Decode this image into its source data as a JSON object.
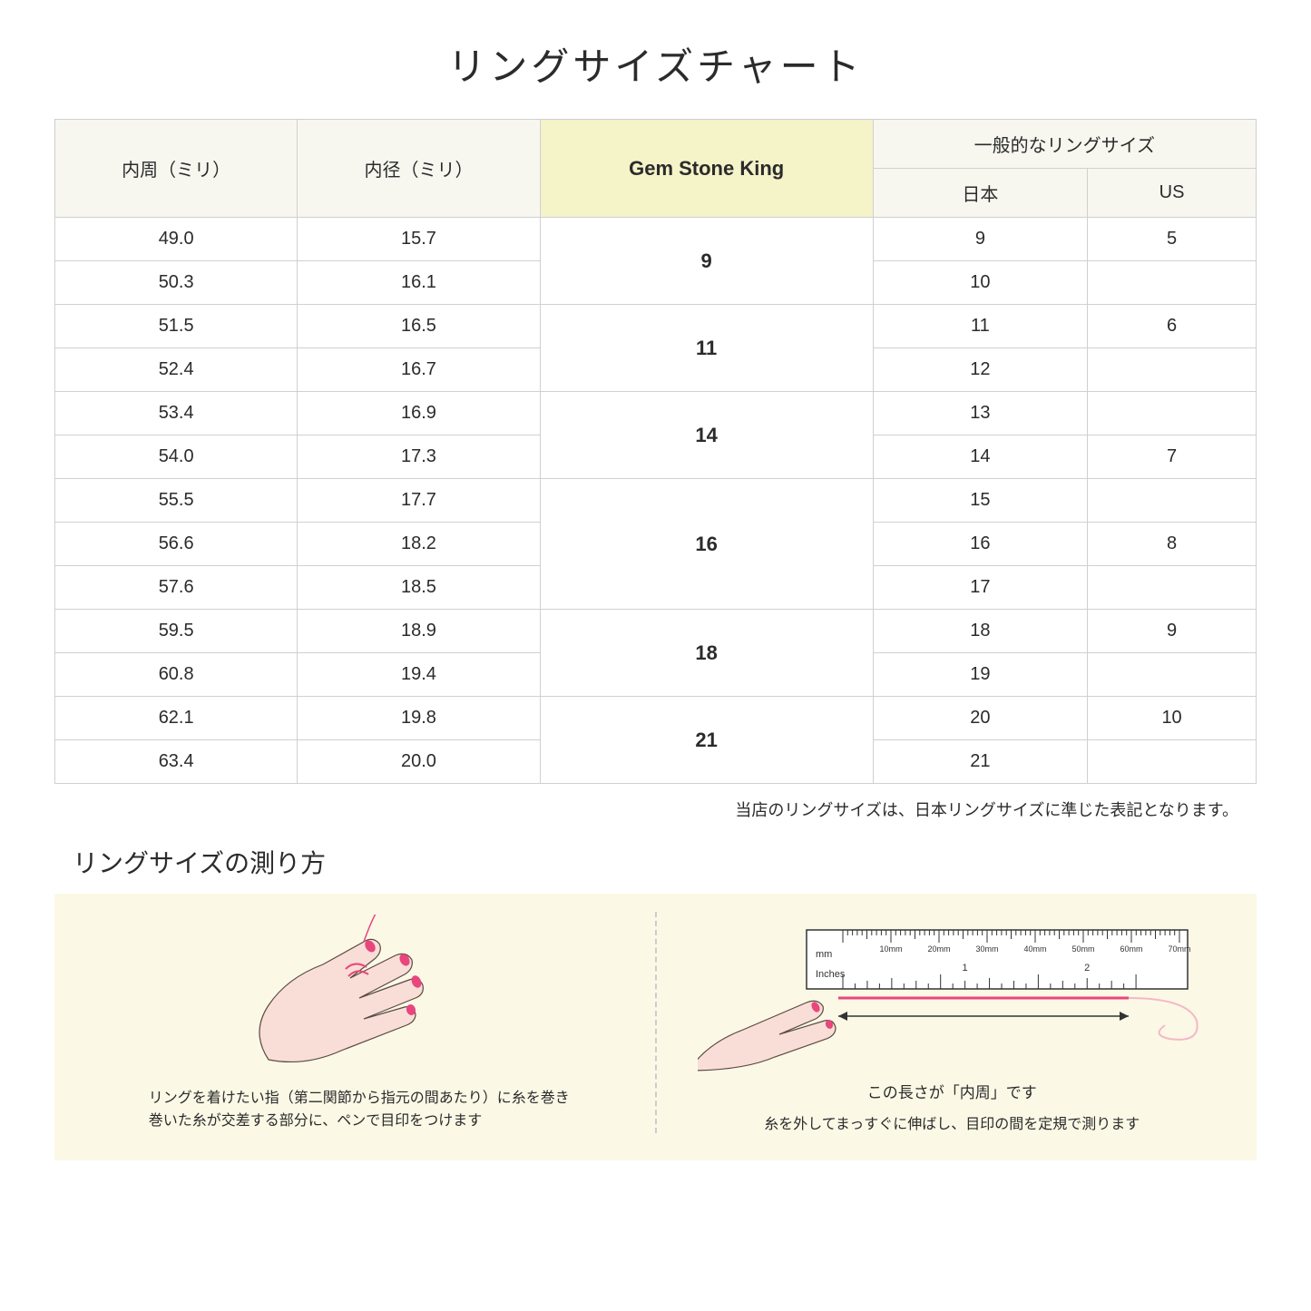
{
  "title": "リングサイズチャート",
  "table": {
    "headers": {
      "circumference": "内周（ミリ）",
      "diameter": "内径（ミリ）",
      "gsk": "Gem Stone King",
      "general": "一般的なリングサイズ",
      "japan": "日本",
      "us": "US"
    },
    "groups": [
      {
        "gsk": "9",
        "rows": [
          {
            "circ": "49.0",
            "diam": "15.7",
            "jp": "9",
            "us": "5"
          },
          {
            "circ": "50.3",
            "diam": "16.1",
            "jp": "10",
            "us": ""
          }
        ]
      },
      {
        "gsk": "11",
        "rows": [
          {
            "circ": "51.5",
            "diam": "16.5",
            "jp": "11",
            "us": "6"
          },
          {
            "circ": "52.4",
            "diam": "16.7",
            "jp": "12",
            "us": ""
          }
        ]
      },
      {
        "gsk": "14",
        "rows": [
          {
            "circ": "53.4",
            "diam": "16.9",
            "jp": "13",
            "us": ""
          },
          {
            "circ": "54.0",
            "diam": "17.3",
            "jp": "14",
            "us": "7"
          }
        ]
      },
      {
        "gsk": "16",
        "rows": [
          {
            "circ": "55.5",
            "diam": "17.7",
            "jp": "15",
            "us": ""
          },
          {
            "circ": "56.6",
            "diam": "18.2",
            "jp": "16",
            "us": "8"
          },
          {
            "circ": "57.6",
            "diam": "18.5",
            "jp": "17",
            "us": ""
          }
        ]
      },
      {
        "gsk": "18",
        "rows": [
          {
            "circ": "59.5",
            "diam": "18.9",
            "jp": "18",
            "us": "9"
          },
          {
            "circ": "60.8",
            "diam": "19.4",
            "jp": "19",
            "us": ""
          }
        ]
      },
      {
        "gsk": "21",
        "rows": [
          {
            "circ": "62.1",
            "diam": "19.8",
            "jp": "20",
            "us": "10"
          },
          {
            "circ": "63.4",
            "diam": "20.0",
            "jp": "21",
            "us": ""
          }
        ]
      }
    ]
  },
  "note": "当店のリングサイズは、日本リングサイズに準じた表記となります。",
  "subtitle": "リングサイズの測り方",
  "howto": {
    "left_caption": "リングを着けたい指（第二関節から指元の間あたり）に糸を巻き\n巻いた糸が交差する部分に、ペンで目印をつけます",
    "right_label": "この長さが「内周」です",
    "right_caption": "糸を外してまっすぐに伸ばし、目印の間を定規で測ります",
    "ruler": {
      "mm_label": "mm",
      "inches_label": "Inches",
      "mm_ticks": [
        "10mm",
        "20mm",
        "30mm",
        "40mm",
        "50mm",
        "60mm",
        "70mm"
      ],
      "inch_ticks": [
        "1",
        "2"
      ]
    }
  },
  "colors": {
    "header_bg": "#f7f7f0",
    "gsk_bg": "#f5f3c8",
    "howto_bg": "#fbf8e6",
    "border": "#d0d0d0",
    "hand_fill": "#f8ded7",
    "hand_stroke": "#5a4a42",
    "nail": "#e8467d",
    "thread": "#e8467d",
    "ruler_fill": "#ffffff",
    "ruler_stroke": "#333333"
  }
}
